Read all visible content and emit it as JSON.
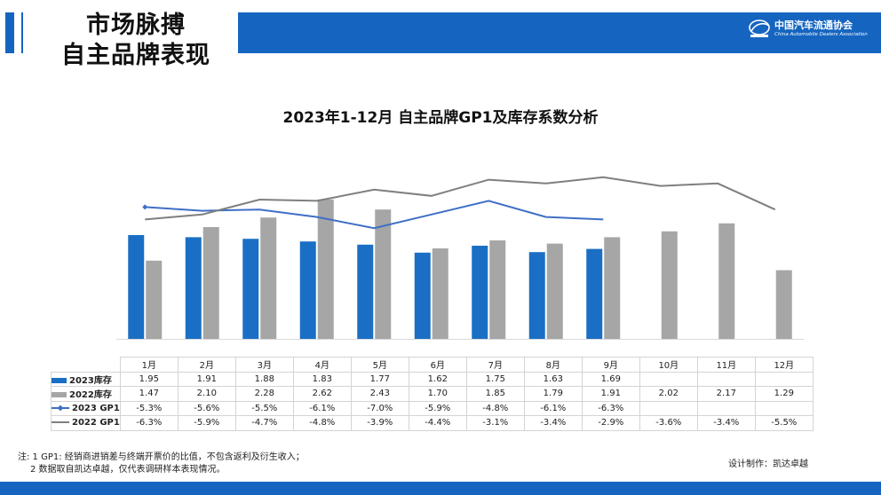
{
  "header": {
    "title_line1": "市场脉搏",
    "title_line2": "自主品牌表现",
    "logo_cn": "中国汽车流通协会",
    "logo_en": "China Automobile Dealers Association"
  },
  "colors": {
    "brand_blue": "#1565c0",
    "bar_2023": "#1a6fc4",
    "bar_2022": "#a6a6a6",
    "line_2023_gp1": "#3f6fc6",
    "line_2022_gp1": "#7f7f7f"
  },
  "chart_data": {
    "type": "bar",
    "title": "2023年1-12月 自主品牌GP1及库存系数分析",
    "categories": [
      "1月",
      "2月",
      "3月",
      "4月",
      "5月",
      "6月",
      "7月",
      "8月",
      "9月",
      "10月",
      "11月",
      "12月"
    ],
    "bar_series": [
      {
        "name": "2023库存",
        "values": [
          1.95,
          1.91,
          1.88,
          1.83,
          1.77,
          1.62,
          1.75,
          1.63,
          1.69,
          null,
          null,
          null
        ]
      },
      {
        "name": "2022库存",
        "values": [
          1.47,
          2.1,
          2.28,
          2.62,
          2.43,
          1.7,
          1.85,
          1.79,
          1.91,
          2.02,
          2.17,
          1.29
        ]
      }
    ],
    "line_series": [
      {
        "name": "2023 GP1",
        "values": [
          "-5.3%",
          "-5.6%",
          "-5.5%",
          "-6.1%",
          "-7.0%",
          "-5.9%",
          "-4.8%",
          "-6.1%",
          "-6.3%",
          "",
          "",
          ""
        ]
      },
      {
        "name": "2022 GP1",
        "values": [
          "-6.3%",
          "-5.9%",
          "-4.7%",
          "-4.8%",
          "-3.9%",
          "-4.4%",
          "-3.1%",
          "-3.4%",
          "-2.9%",
          "-3.6%",
          "-3.4%",
          "-5.5%"
        ]
      }
    ],
    "legend_position": "table-left",
    "grid": false
  },
  "footer": {
    "note1": "注: 1  GP1: 经销商进销差与终端开票价的比值，不包含返利及衍生收入；",
    "note2": "2 数据取自凯达卓越，仅代表调研样本表现情况。",
    "credit": "设计制作：凯达卓越"
  }
}
